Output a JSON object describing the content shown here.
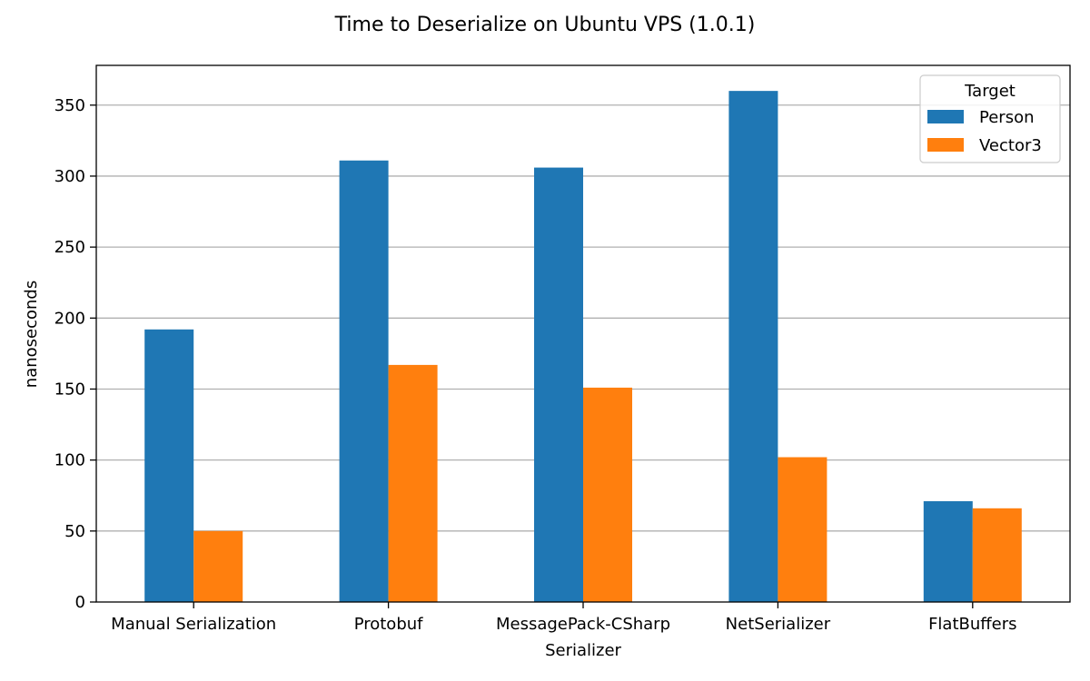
{
  "chart_data": {
    "type": "bar",
    "title": "Time to Deserialize on Ubuntu VPS (1.0.1)",
    "xlabel": "Serializer",
    "ylabel": "nanoseconds",
    "categories": [
      "Manual Serialization",
      "Protobuf",
      "MessagePack-CSharp",
      "NetSerializer",
      "FlatBuffers"
    ],
    "series": [
      {
        "name": "Person",
        "values": [
          192,
          311,
          306,
          360,
          71
        ],
        "color": "#1f77b4"
      },
      {
        "name": "Vector3",
        "values": [
          50,
          167,
          151,
          102,
          66
        ],
        "color": "#ff7f0e"
      }
    ],
    "ylim": [
      0,
      378
    ],
    "yticks": [
      0,
      50,
      100,
      150,
      200,
      250,
      300,
      350
    ],
    "grid": "y",
    "legend": {
      "title": "Target",
      "placement": "top-right"
    }
  }
}
